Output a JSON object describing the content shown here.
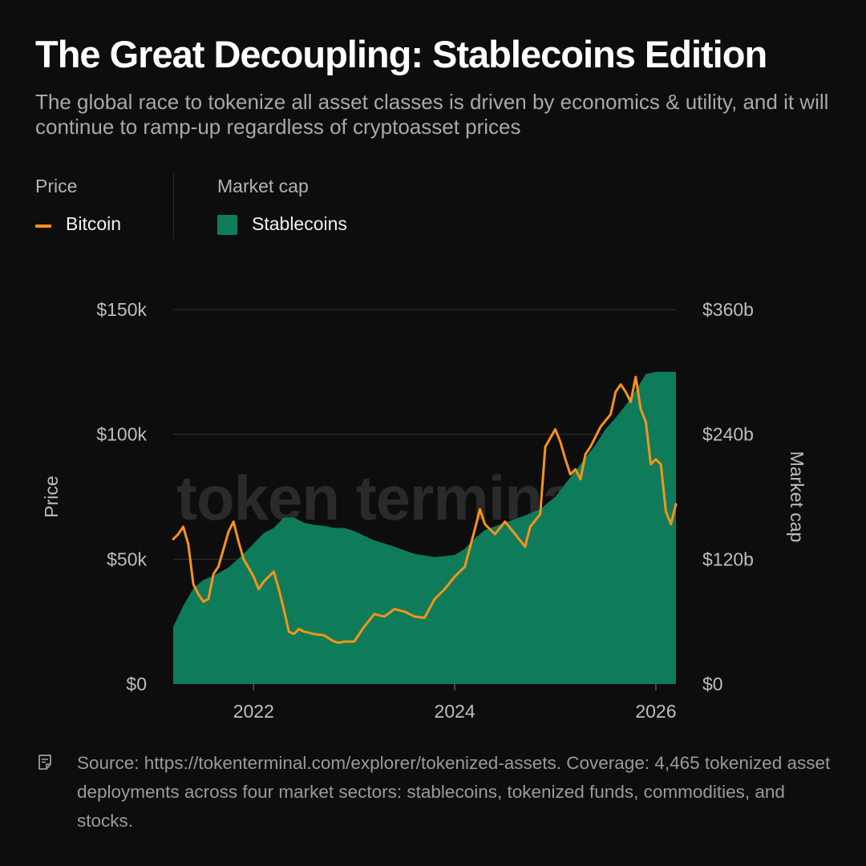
{
  "header": {
    "title": "The Great Decoupling: Stablecoins Edition",
    "subtitle": "The global race to tokenize all asset classes is driven by economics & utility, and it will continue to ramp-up regardless of cryptoasset prices"
  },
  "legend": {
    "left_heading": "Price",
    "left_item": "Bitcoin",
    "right_heading": "Market cap",
    "right_item": "Stablecoins"
  },
  "footer": {
    "source_text": "Source: https://tokenterminal.com/explorer/tokenized-assets. Coverage: 4,465 tokenized asset deployments across four market sectors: stablecoins, tokenized funds, commodities, and stocks.",
    "icon": "note-icon"
  },
  "colors": {
    "background": "#0d0d0d",
    "bitcoin": "#f7931a",
    "stablecoins": "#0e7c5a",
    "grid": "#333333",
    "axis_text": "#bdbdbd",
    "watermark": "#2a2a2a"
  },
  "chart_data": {
    "type": "area+line",
    "title": "The Great Decoupling: Stablecoins Edition",
    "watermark": "token terminal_",
    "x_axis": {
      "label": "",
      "ticks": [
        "2022",
        "2024",
        "2026"
      ],
      "tick_values": [
        2022.0,
        2024.0,
        2026.0
      ],
      "range": [
        2021.2,
        2026.2
      ]
    },
    "y_left": {
      "label": "Price",
      "ticks": [
        "$0",
        "$50k",
        "$100k",
        "$150k"
      ],
      "tick_values": [
        0,
        50000,
        100000,
        150000
      ],
      "range": [
        0,
        150000
      ]
    },
    "y_right": {
      "label": "Market cap",
      "ticks": [
        "$0",
        "$120b",
        "$240b",
        "$360b"
      ],
      "tick_values": [
        0,
        120,
        240,
        360
      ],
      "range": [
        0,
        360
      ]
    },
    "grid": "horizontal",
    "series": [
      {
        "name": "Stablecoins",
        "kind": "area",
        "axis": "right",
        "unit": "USD billions",
        "x": [
          2021.2,
          2021.3,
          2021.4,
          2021.5,
          2021.6,
          2021.75,
          2021.9,
          2022.0,
          2022.1,
          2022.2,
          2022.3,
          2022.4,
          2022.5,
          2022.6,
          2022.7,
          2022.8,
          2022.9,
          2023.0,
          2023.2,
          2023.4,
          2023.6,
          2023.8,
          2024.0,
          2024.1,
          2024.2,
          2024.3,
          2024.5,
          2024.7,
          2024.85,
          2025.0,
          2025.2,
          2025.4,
          2025.5,
          2025.6,
          2025.7,
          2025.8,
          2025.9,
          2026.0,
          2026.1,
          2026.2
        ],
        "values": [
          55,
          75,
          92,
          100,
          104,
          112,
          125,
          135,
          145,
          150,
          160,
          160,
          155,
          153,
          152,
          150,
          150,
          147,
          138,
          132,
          125,
          122,
          124,
          130,
          140,
          148,
          155,
          162,
          168,
          180,
          205,
          230,
          245,
          256,
          268,
          282,
          298,
          300,
          300,
          300
        ]
      },
      {
        "name": "Bitcoin",
        "kind": "line",
        "axis": "left",
        "unit": "USD",
        "x": [
          2021.2,
          2021.25,
          2021.3,
          2021.35,
          2021.4,
          2021.45,
          2021.5,
          2021.55,
          2021.6,
          2021.65,
          2021.75,
          2021.8,
          2021.85,
          2021.9,
          2022.0,
          2022.05,
          2022.1,
          2022.2,
          2022.25,
          2022.3,
          2022.35,
          2022.4,
          2022.45,
          2022.5,
          2022.6,
          2022.7,
          2022.8,
          2022.85,
          2022.9,
          2023.0,
          2023.1,
          2023.2,
          2023.3,
          2023.4,
          2023.5,
          2023.6,
          2023.7,
          2023.8,
          2023.9,
          2024.0,
          2024.1,
          2024.2,
          2024.25,
          2024.3,
          2024.4,
          2024.5,
          2024.6,
          2024.7,
          2024.75,
          2024.85,
          2024.9,
          2025.0,
          2025.05,
          2025.1,
          2025.15,
          2025.2,
          2025.25,
          2025.3,
          2025.35,
          2025.45,
          2025.55,
          2025.6,
          2025.65,
          2025.7,
          2025.75,
          2025.8,
          2025.85,
          2025.9,
          2025.95,
          2026.0,
          2026.05,
          2026.1,
          2026.15,
          2026.2
        ],
        "values": [
          58000,
          60000,
          63000,
          56000,
          40000,
          36000,
          33000,
          34000,
          44000,
          47000,
          61000,
          65000,
          57000,
          50000,
          43000,
          38000,
          41000,
          45000,
          38000,
          30000,
          21000,
          20000,
          22000,
          21000,
          20000,
          19500,
          17000,
          16500,
          17000,
          17000,
          23000,
          28000,
          27000,
          30000,
          29000,
          27000,
          26500,
          34000,
          38000,
          43000,
          47000,
          62000,
          70000,
          64000,
          60000,
          65000,
          60000,
          55000,
          63000,
          68000,
          95000,
          102000,
          97000,
          90000,
          84000,
          86000,
          82000,
          92000,
          95000,
          103000,
          108000,
          117000,
          120000,
          117000,
          113000,
          123000,
          110000,
          105000,
          88000,
          90000,
          88000,
          69000,
          64000,
          72000
        ]
      }
    ]
  }
}
